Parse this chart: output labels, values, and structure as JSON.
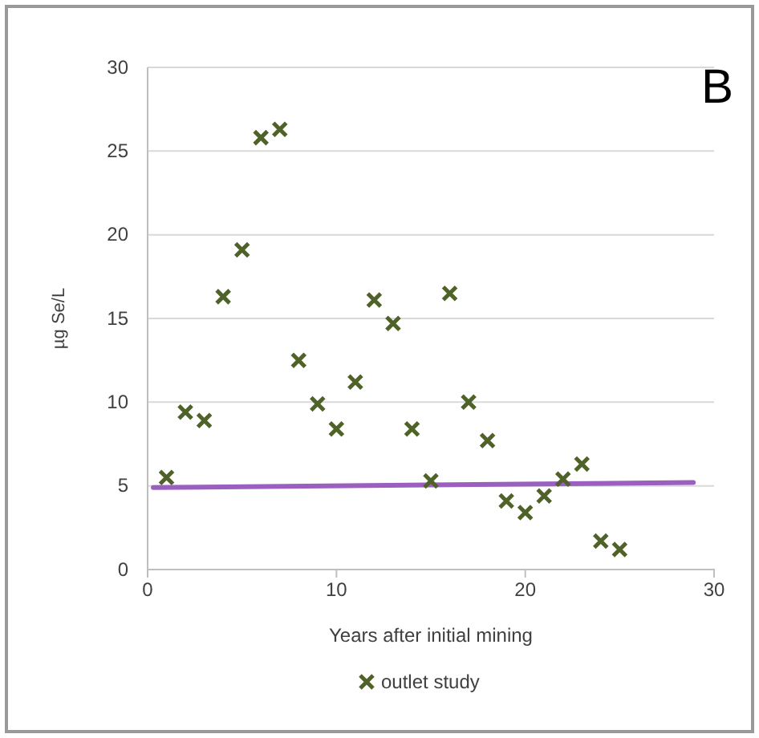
{
  "chart_data": {
    "type": "scatter",
    "xlabel": "Years after initial mining",
    "ylabel": "µg Se/L",
    "annotations": [
      "B"
    ],
    "xlim": [
      0,
      30
    ],
    "xticks": [
      0,
      10,
      20,
      30
    ],
    "ylim": [
      0,
      30
    ],
    "yticks": [
      0,
      5,
      10,
      15,
      20,
      25,
      30
    ],
    "grid": "y",
    "legend": "bottom",
    "series": [
      {
        "name": "outlet study",
        "color": "#4f6228",
        "marker": "cross",
        "x": [
          1,
          2,
          3,
          4,
          5,
          6,
          7,
          8,
          9,
          10,
          11,
          12,
          13,
          14,
          15,
          16,
          17,
          18,
          19,
          20,
          21,
          22,
          23,
          24,
          25
        ],
        "values": [
          5.5,
          9.4,
          8.9,
          16.3,
          19.1,
          25.8,
          26.3,
          12.5,
          9.9,
          8.4,
          11.2,
          16.1,
          14.7,
          8.4,
          5.3,
          16.5,
          10.0,
          7.7,
          4.1,
          3.4,
          4.4,
          5.4,
          6.3,
          1.7,
          1.2
        ]
      },
      {
        "type": "line",
        "color": "#9b5fc0",
        "marker": "none",
        "x": [
          0.3,
          28.9
        ],
        "values": [
          4.9,
          5.2
        ]
      }
    ]
  }
}
